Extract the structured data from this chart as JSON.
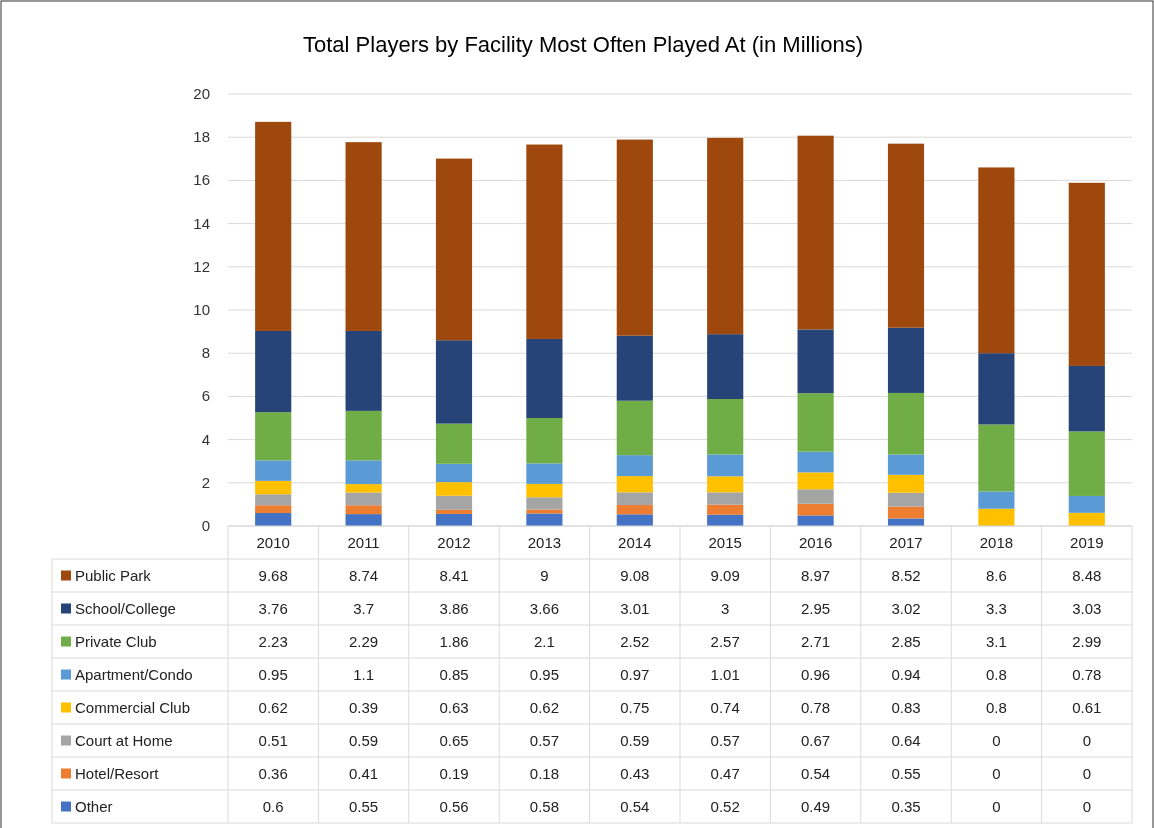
{
  "chart_data": {
    "type": "bar",
    "title": "Total Players by Facility Most Often Played At (in Millions)",
    "categories": [
      "2010",
      "2011",
      "2012",
      "2013",
      "2014",
      "2015",
      "2016",
      "2017",
      "2018",
      "2019"
    ],
    "stacked": true,
    "ylim": [
      0,
      20
    ],
    "yticks": [
      0,
      2,
      4,
      6,
      8,
      10,
      12,
      14,
      16,
      18,
      20
    ],
    "grid": "y",
    "legend": "bottom",
    "data_labels": true,
    "series": [
      {
        "name": "Other",
        "color": "#4472c4",
        "values": [
          0.6,
          0.55,
          0.56,
          0.58,
          0.54,
          0.52,
          0.49,
          0.35,
          0,
          0
        ]
      },
      {
        "name": "Hotel/Resort",
        "color": "#ed7d31",
        "values": [
          0.36,
          0.41,
          0.19,
          0.18,
          0.43,
          0.47,
          0.54,
          0.55,
          0,
          0
        ]
      },
      {
        "name": "Court at Home",
        "color": "#a5a5a5",
        "values": [
          0.51,
          0.59,
          0.65,
          0.57,
          0.59,
          0.57,
          0.67,
          0.64,
          0,
          0
        ]
      },
      {
        "name": "Commercial Club",
        "color": "#ffc000",
        "values": [
          0.62,
          0.39,
          0.63,
          0.62,
          0.75,
          0.74,
          0.78,
          0.83,
          0.8,
          0.61
        ]
      },
      {
        "name": "Apartment/Condo",
        "color": "#5b9bd5",
        "values": [
          0.95,
          1.1,
          0.85,
          0.95,
          0.97,
          1.01,
          0.96,
          0.94,
          0.8,
          0.78
        ]
      },
      {
        "name": "Private Club",
        "color": "#70ad47",
        "values": [
          2.23,
          2.29,
          1.86,
          2.1,
          2.52,
          2.57,
          2.71,
          2.85,
          3.1,
          2.99
        ]
      },
      {
        "name": "School/College",
        "color": "#264478",
        "values": [
          3.76,
          3.7,
          3.86,
          3.66,
          3.01,
          3,
          2.95,
          3.02,
          3.3,
          3.03
        ]
      },
      {
        "name": "Public Park",
        "color": "#9e480e",
        "values": [
          9.68,
          8.74,
          8.41,
          9,
          9.08,
          9.09,
          8.97,
          8.52,
          8.6,
          8.48
        ]
      }
    ]
  }
}
